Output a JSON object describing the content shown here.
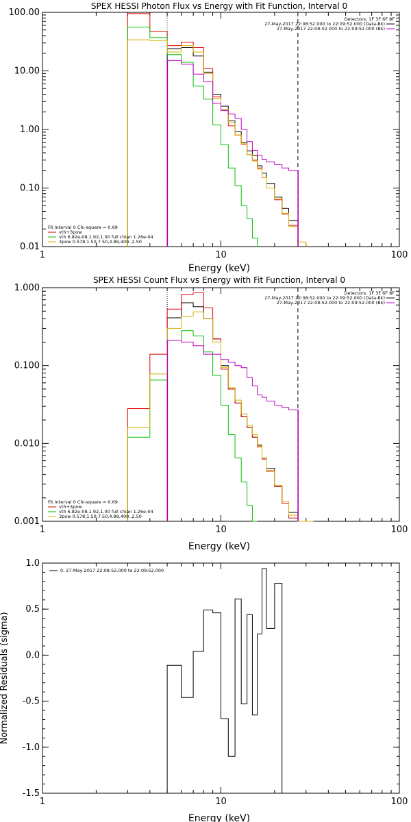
{
  "chart_data": [
    {
      "type": "line",
      "title": "SPEX HESSI Photon Flux vs Energy with Fit Function, Interval 0",
      "xlabel": "Energy (keV)",
      "ylabel": "",
      "xscale": "log",
      "yscale": "log",
      "xlim": [
        1,
        100
      ],
      "ylim": [
        0.01,
        100
      ],
      "xticks": [
        "1",
        "10",
        "100"
      ],
      "yticks": [
        "0.01",
        "0.10",
        "1.00",
        "10.00",
        "100.00"
      ],
      "legend_top": {
        "header": "Detectors: 1F 3F 6F 8F",
        "entries": [
          {
            "text": "27-May-2017 22:08:52.000 to 22:09:52.000 (Data-Bk)",
            "color": "#000000"
          },
          {
            "text": "27-May-2017 22:08:52.000 to 22:09:52.000 (Bk)",
            "color": "#c000c0"
          }
        ]
      },
      "legend_bottom": {
        "header": "Fit Interval 0   Chi-square = 0.69",
        "entries": [
          {
            "text": "vth+3pow",
            "color": "#dd0000"
          },
          {
            "text": "vth 6.82e-08,1.92,1.00   full chian 1.26e-04",
            "color": "#00c000"
          },
          {
            "text": "3pow 0.578,1.50,7.50,4.89,400.,2.50",
            "color": "#d8b000"
          }
        ]
      },
      "vlines": [
        {
          "x": 5.0,
          "style": "dotted",
          "color": "#000000"
        },
        {
          "x": 5.0,
          "style": "solid",
          "color": "#c000c0"
        },
        {
          "x": 27.0,
          "style": "dashed",
          "color": "#000000"
        },
        {
          "x": 27.0,
          "style": "solid",
          "color": "#c000c0"
        }
      ],
      "edges": [
        3,
        4,
        5,
        6,
        7,
        8,
        9,
        10,
        11,
        12,
        13,
        14,
        15,
        16,
        17,
        18,
        20,
        22,
        24,
        27,
        30
      ],
      "series": [
        {
          "name": "Data-Bk",
          "color": "#000000",
          "values": [
            null,
            null,
            24,
            25,
            18,
            9.5,
            4.0,
            2.5,
            1.4,
            0.92,
            0.6,
            0.43,
            0.36,
            0.24,
            0.18,
            0.12,
            0.07,
            0.045,
            0.028,
            null
          ]
        },
        {
          "name": "vth+3pow",
          "color": "#dd0000",
          "values": [
            95,
            47,
            27,
            31,
            25,
            11,
            3.6,
            2.2,
            1.15,
            0.8,
            0.56,
            0.37,
            0.3,
            0.22,
            0.15,
            0.1,
            0.063,
            0.036,
            0.023,
            null
          ]
        },
        {
          "name": "vth",
          "color": "#00c000",
          "values": [
            56,
            37,
            19,
            14,
            5.5,
            3.3,
            1.2,
            0.55,
            0.22,
            0.11,
            0.05,
            0.03,
            0.014,
            null,
            null,
            null,
            null,
            null,
            null,
            null
          ]
        },
        {
          "name": "3pow",
          "color": "#d8b000",
          "values": [
            34,
            33,
            21,
            27,
            21,
            9.0,
            3.4,
            2.2,
            1.3,
            0.8,
            0.57,
            0.37,
            0.29,
            0.21,
            0.15,
            0.1,
            0.065,
            0.037,
            0.022,
            0.012
          ]
        },
        {
          "name": "Bk",
          "color": "#c000c0",
          "values": [
            null,
            null,
            15,
            13,
            8.8,
            6.5,
            2.8,
            2.1,
            1.85,
            1.55,
            1.0,
            0.62,
            0.44,
            0.36,
            0.31,
            0.28,
            0.25,
            0.22,
            0.2,
            null
          ]
        }
      ]
    },
    {
      "type": "line",
      "title": "SPEX HESSI Count Flux vs Energy with Fit Function, Interval 0",
      "xlabel": "Energy (keV)",
      "ylabel": "",
      "xscale": "log",
      "yscale": "log",
      "xlim": [
        1,
        100
      ],
      "ylim": [
        0.001,
        1
      ],
      "xticks": [
        "1",
        "10",
        "100"
      ],
      "yticks": [
        "0.001",
        "0.010",
        "0.100",
        "1.000"
      ],
      "legend_top": {
        "header": "Detectors: 1F 3F 6F 8F",
        "entries": [
          {
            "text": "27-May-2017 22:08:52.000 to 22:09:52.000 (Data-Bk)",
            "color": "#000000"
          },
          {
            "text": "27-May-2017 22:08:52.000 to 22:09:52.000 (Bk)",
            "color": "#c000c0"
          }
        ]
      },
      "legend_bottom": {
        "header": "Fit Interval 0   Chi-square = 0.69",
        "entries": [
          {
            "text": "vth+3pow",
            "color": "#dd0000"
          },
          {
            "text": "vth 6.82e-08,1.92,1.00   full chian 1.26e-04",
            "color": "#00c000"
          },
          {
            "text": "3pow 0.578,1.50,7.50,4.89,400.,2.50",
            "color": "#d8b000"
          }
        ]
      },
      "vlines": [
        {
          "x": 5.0,
          "style": "dotted",
          "color": "#000000"
        },
        {
          "x": 5.0,
          "style": "solid",
          "color": "#c000c0"
        },
        {
          "x": 27.0,
          "style": "dashed",
          "color": "#000000"
        },
        {
          "x": 27.0,
          "style": "solid",
          "color": "#c000c0"
        }
      ],
      "edges": [
        3,
        4,
        5,
        6,
        7,
        8,
        9,
        10,
        11,
        12,
        13,
        14,
        15,
        16,
        17,
        18,
        20,
        22,
        24,
        27,
        30,
        33
      ],
      "series": [
        {
          "name": "Data-Bk",
          "color": "#000000",
          "values": [
            null,
            null,
            0.41,
            0.64,
            0.57,
            0.4,
            0.22,
            0.1,
            0.05,
            0.033,
            0.022,
            0.016,
            0.012,
            0.0095,
            0.0065,
            0.0048,
            0.0028,
            0.0018,
            0.0013,
            null,
            null
          ]
        },
        {
          "name": "vth+3pow",
          "color": "#dd0000",
          "values": [
            0.028,
            0.14,
            0.53,
            0.82,
            0.86,
            0.55,
            0.22,
            0.09,
            0.05,
            0.033,
            0.022,
            0.016,
            0.012,
            0.009,
            0.0063,
            0.0044,
            0.0028,
            0.0017,
            0.0011,
            null,
            null
          ]
        },
        {
          "name": "vth",
          "color": "#00c000",
          "values": [
            0.012,
            0.065,
            0.21,
            0.28,
            0.24,
            0.15,
            0.075,
            0.031,
            0.013,
            0.0065,
            0.0032,
            0.0016,
            0.0009,
            null,
            null,
            null,
            null,
            null,
            null,
            null,
            null
          ]
        },
        {
          "name": "3pow",
          "color": "#d8b000",
          "values": [
            0.016,
            0.078,
            0.3,
            0.43,
            0.49,
            0.4,
            0.2,
            0.095,
            0.052,
            0.036,
            0.024,
            0.017,
            0.013,
            0.0093,
            0.0065,
            0.0045,
            0.0029,
            0.0018,
            0.0012,
            0.0009,
            0.0009
          ]
        },
        {
          "name": "Bk",
          "color": "#c000c0",
          "values": [
            null,
            null,
            0.21,
            0.2,
            0.18,
            0.14,
            0.14,
            0.12,
            0.11,
            0.1,
            0.094,
            0.07,
            0.055,
            0.042,
            0.039,
            0.035,
            0.031,
            0.029,
            0.027,
            null,
            null
          ]
        }
      ]
    },
    {
      "type": "line",
      "title": "",
      "xlabel": "Energy (keV)",
      "ylabel": "Normalized Residuals (sigma)",
      "xscale": "log",
      "yscale": "linear",
      "xlim": [
        1,
        100
      ],
      "ylim": [
        -1.5,
        1.0
      ],
      "xticks": [
        "1",
        "10",
        "100"
      ],
      "yticks": [
        "-1.5",
        "-1.0",
        "-0.5",
        "0.0",
        "0.5",
        "1.0"
      ],
      "legend": {
        "entries": [
          {
            "text": "0. 27-May-2017 22:08:52.000 to 22:09:52.000",
            "color": "#000000"
          }
        ]
      },
      "edges": [
        5,
        6,
        7,
        8,
        9,
        10,
        11,
        12,
        13,
        14,
        15,
        16,
        17,
        18,
        20,
        22,
        24,
        27
      ],
      "series": [
        {
          "name": "0. 27-May-2017 22:08:52.000 to 22:09:52.000",
          "color": "#000000",
          "values": [
            -0.11,
            -0.46,
            0.04,
            0.49,
            0.46,
            -0.69,
            -1.1,
            0.61,
            -0.53,
            0.44,
            -0.65,
            0.23,
            0.94,
            0.29,
            0.78,
            null,
            null
          ]
        }
      ]
    }
  ]
}
